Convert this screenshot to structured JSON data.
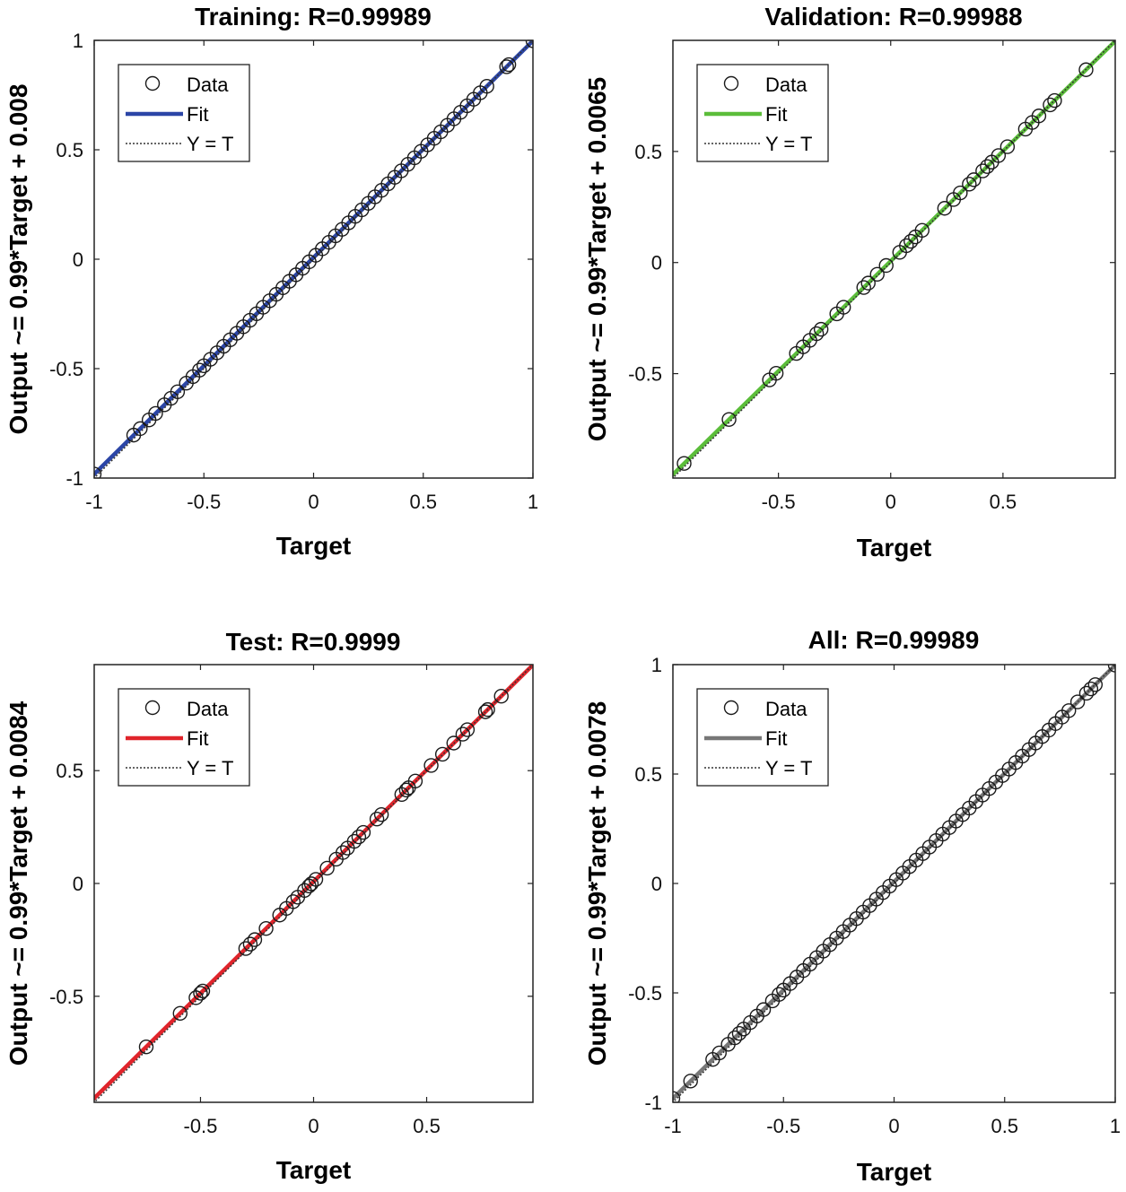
{
  "chart_data": [
    {
      "type": "scatter",
      "title": "Training: R=0.99989",
      "xlabel": "Target",
      "ylabel": "Output ~= 0.99*Target + 0.008",
      "xlim": [
        -1,
        1
      ],
      "ylim": [
        -1,
        1
      ],
      "xticks": [
        -1,
        -0.5,
        0,
        0.5,
        1
      ],
      "xtick_labels": [
        "-1",
        "-0.5",
        "0",
        "0.5",
        "1"
      ],
      "yticks": [
        -1,
        -0.5,
        0,
        0.5,
        1
      ],
      "ytick_labels": [
        "-1",
        "-0.5",
        "0",
        "0.5",
        "1"
      ],
      "fit_color": "#2b45a6",
      "fit": {
        "slope": 0.99,
        "intercept": 0.008
      },
      "legend": {
        "data": "Data",
        "fit": "Fit",
        "identity": "Y = T"
      },
      "series": [
        {
          "name": "Data",
          "x": [
            -1,
            -0.82,
            -0.79,
            -0.75,
            -0.72,
            -0.68,
            -0.65,
            -0.62,
            -0.58,
            -0.55,
            -0.52,
            -0.5,
            -0.47,
            -0.44,
            -0.41,
            -0.38,
            -0.35,
            -0.32,
            -0.29,
            -0.26,
            -0.23,
            -0.2,
            -0.17,
            -0.14,
            -0.11,
            -0.08,
            -0.05,
            -0.02,
            0.01,
            0.04,
            0.07,
            0.1,
            0.13,
            0.16,
            0.19,
            0.22,
            0.25,
            0.28,
            0.31,
            0.34,
            0.37,
            0.4,
            0.43,
            0.46,
            0.49,
            0.52,
            0.55,
            0.58,
            0.61,
            0.64,
            0.67,
            0.7,
            0.73,
            0.76,
            0.79,
            0.88,
            0.89,
            1
          ]
        }
      ]
    },
    {
      "type": "scatter",
      "title": "Validation: R=0.99988",
      "xlabel": "Target",
      "ylabel": "Output ~= 0.99*Target + 0.0065",
      "xlim": [
        -0.97,
        1
      ],
      "ylim": [
        -0.97,
        1
      ],
      "xticks": [
        -0.5,
        0,
        0.5
      ],
      "xtick_labels": [
        "-0.5",
        "0",
        "0.5"
      ],
      "yticks": [
        -0.5,
        0,
        0.5
      ],
      "ytick_labels": [
        "-0.5",
        "0",
        "0.5"
      ],
      "fit_color": "#5bbd3a",
      "fit": {
        "slope": 0.99,
        "intercept": 0.0065
      },
      "legend": {
        "data": "Data",
        "fit": "Fit",
        "identity": "Y = T"
      },
      "series": [
        {
          "name": "Data",
          "x": [
            -0.92,
            -0.72,
            -0.54,
            -0.51,
            -0.42,
            -0.39,
            -0.36,
            -0.33,
            -0.31,
            -0.24,
            -0.21,
            -0.12,
            -0.1,
            -0.06,
            -0.02,
            0.04,
            0.07,
            0.09,
            0.11,
            0.14,
            0.24,
            0.28,
            0.31,
            0.35,
            0.37,
            0.41,
            0.43,
            0.45,
            0.48,
            0.52,
            0.6,
            0.63,
            0.66,
            0.71,
            0.73,
            0.87
          ]
        }
      ]
    },
    {
      "type": "scatter",
      "title": "Test: R=0.9999",
      "xlabel": "Target",
      "ylabel": "Output ~= 0.99*Target + 0.0084",
      "xlim": [
        -0.97,
        0.97
      ],
      "ylim": [
        -0.97,
        0.97
      ],
      "xticks": [
        -0.5,
        0,
        0.5
      ],
      "xtick_labels": [
        "-0.5",
        "0",
        "0.5"
      ],
      "yticks": [
        -0.5,
        0,
        0.5
      ],
      "ytick_labels": [
        "-0.5",
        "0",
        "0.5"
      ],
      "fit_color": "#e0242b",
      "fit": {
        "slope": 0.99,
        "intercept": 0.0084
      },
      "legend": {
        "data": "Data",
        "fit": "Fit",
        "identity": "Y = T"
      },
      "series": [
        {
          "name": "Data",
          "x": [
            -0.74,
            -0.59,
            -0.52,
            -0.5,
            -0.49,
            -0.3,
            -0.28,
            -0.26,
            -0.21,
            -0.15,
            -0.12,
            -0.09,
            -0.07,
            -0.04,
            -0.02,
            -0.01,
            0.01,
            0.06,
            0.1,
            0.13,
            0.15,
            0.18,
            0.2,
            0.22,
            0.28,
            0.3,
            0.39,
            0.41,
            0.42,
            0.45,
            0.52,
            0.57,
            0.62,
            0.66,
            0.68,
            0.76,
            0.77,
            0.83
          ]
        }
      ]
    },
    {
      "type": "scatter",
      "title": "All: R=0.99989",
      "xlabel": "Target",
      "ylabel": "Output ~= 0.99*Target + 0.0078",
      "xlim": [
        -1,
        1
      ],
      "ylim": [
        -1,
        1
      ],
      "xticks": [
        -1,
        -0.5,
        0,
        0.5,
        1
      ],
      "xtick_labels": [
        "-1",
        "-0.5",
        "0",
        "0.5",
        "1"
      ],
      "yticks": [
        -1,
        -0.5,
        0,
        0.5,
        1
      ],
      "ytick_labels": [
        "-1",
        "-0.5",
        "0",
        "0.5",
        "1"
      ],
      "fit_color": "#777777",
      "fit": {
        "slope": 0.99,
        "intercept": 0.0078
      },
      "legend": {
        "data": "Data",
        "fit": "Fit",
        "identity": "Y = T"
      },
      "series": [
        {
          "name": "Data",
          "x": [
            -1,
            -0.92,
            -0.82,
            -0.79,
            -0.75,
            -0.72,
            -0.7,
            -0.68,
            -0.65,
            -0.62,
            -0.59,
            -0.55,
            -0.52,
            -0.5,
            -0.47,
            -0.44,
            -0.41,
            -0.38,
            -0.35,
            -0.32,
            -0.29,
            -0.26,
            -0.23,
            -0.2,
            -0.17,
            -0.14,
            -0.11,
            -0.08,
            -0.05,
            -0.02,
            0.01,
            0.04,
            0.07,
            0.1,
            0.13,
            0.16,
            0.19,
            0.22,
            0.25,
            0.28,
            0.31,
            0.34,
            0.37,
            0.4,
            0.43,
            0.46,
            0.49,
            0.52,
            0.55,
            0.58,
            0.61,
            0.64,
            0.67,
            0.7,
            0.73,
            0.76,
            0.79,
            0.83,
            0.87,
            0.89,
            0.91,
            1
          ]
        }
      ]
    }
  ]
}
